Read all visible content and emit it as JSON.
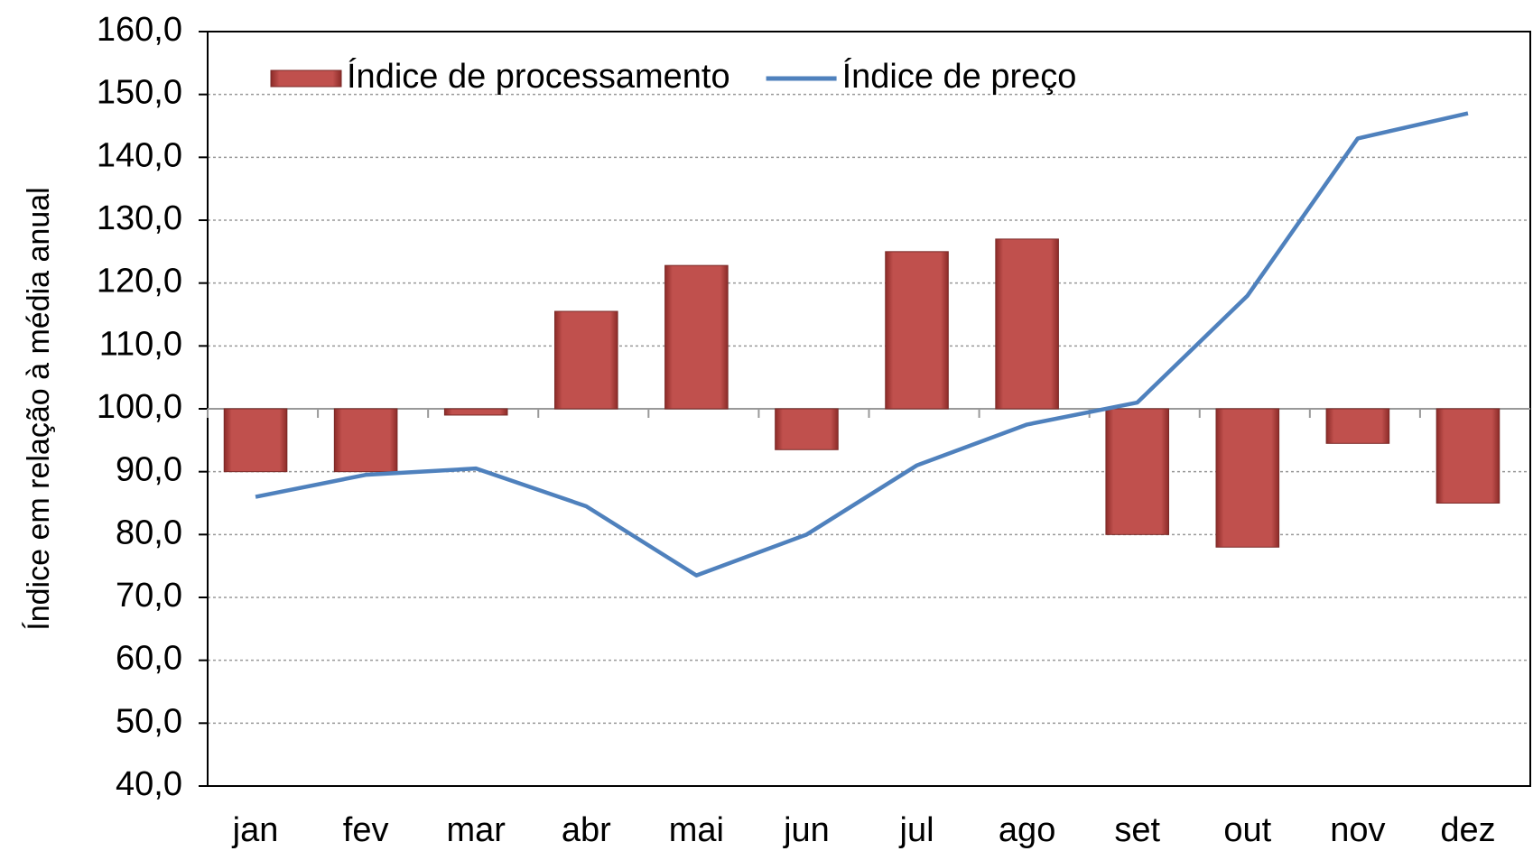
{
  "chart_data": {
    "type": "bar_line",
    "y_axis_label": "Índice em relação à média anual",
    "categories": [
      "jan",
      "fev",
      "mar",
      "abr",
      "mai",
      "jun",
      "jul",
      "ago",
      "set",
      "out",
      "nov",
      "dez"
    ],
    "series": [
      {
        "name": "Índice de processamento",
        "type": "bar",
        "color": "#c0504d",
        "values": [
          90,
          90,
          99,
          115.5,
          122.8,
          93.5,
          125,
          127,
          80,
          78,
          94.5,
          85
        ]
      },
      {
        "name": "Índice de preço",
        "type": "line",
        "color": "#4f81bd",
        "values": [
          86,
          89.5,
          90.5,
          84.5,
          73.5,
          80,
          91,
          97.5,
          101,
          118,
          143,
          147
        ]
      }
    ],
    "bar_base": 100,
    "ylim": [
      40,
      160
    ],
    "yticks": [
      {
        "value": 40,
        "label": "40,0"
      },
      {
        "value": 50,
        "label": "50,0"
      },
      {
        "value": 60,
        "label": "60,0"
      },
      {
        "value": 70,
        "label": "70,0"
      },
      {
        "value": 80,
        "label": "80,0"
      },
      {
        "value": 90,
        "label": "90,0"
      },
      {
        "value": 100,
        "label": "100,0"
      },
      {
        "value": 110,
        "label": "110,0"
      },
      {
        "value": 120,
        "label": "120,0"
      },
      {
        "value": 130,
        "label": "130,0"
      },
      {
        "value": 140,
        "label": "140,0"
      },
      {
        "value": 150,
        "label": "150,0"
      },
      {
        "value": 160,
        "label": "160,0"
      }
    ],
    "grid": true,
    "legend": "top-left"
  }
}
